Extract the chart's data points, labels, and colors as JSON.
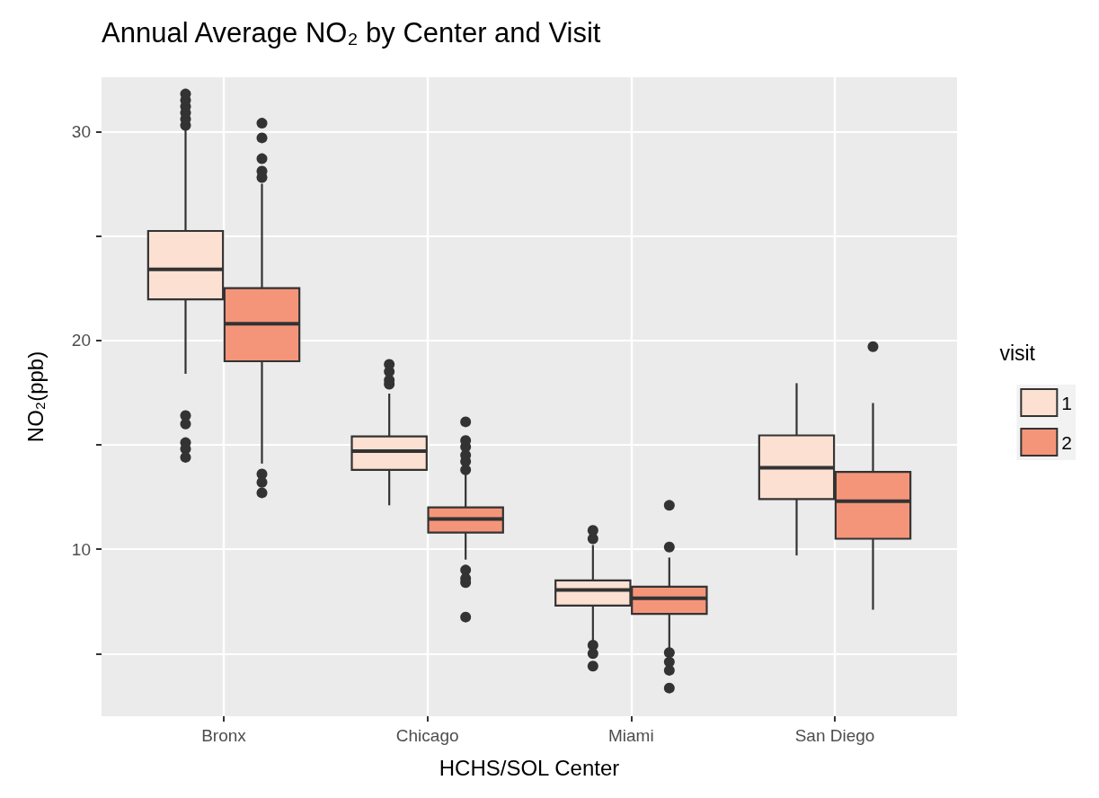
{
  "chart_data": {
    "type": "box",
    "title": "Annual Average NO₂ by Center and Visit",
    "xlabel": "HCHS/SOL Center",
    "ylabel": "NO₂(ppb)",
    "legend_title": "visit",
    "categories": [
      "Bronx",
      "Chicago",
      "Miami",
      "San Diego"
    ],
    "ylim": [
      2,
      32.6
    ],
    "yticks": [
      {
        "value": 5,
        "label": null
      },
      10,
      {
        "value": 15,
        "label": null
      },
      20,
      {
        "value": 25,
        "label": null
      },
      30
    ],
    "grid": true,
    "legend": "right",
    "series": [
      {
        "name": "1",
        "color": "#fce0d2",
        "boxes": [
          {
            "low": 18.4,
            "q1": 21.96,
            "median": 23.4,
            "q3": 25.24,
            "high": 30.1,
            "outliers": [
              30.3,
              30.6,
              30.9,
              31.2,
              31.5,
              31.8,
              16.4,
              16.0,
              15.1,
              14.8,
              14.4
            ]
          },
          {
            "low": 12.1,
            "q1": 13.8,
            "median": 14.7,
            "q3": 15.4,
            "high": 17.45,
            "outliers": [
              17.9,
              18.1,
              18.5,
              18.85
            ]
          },
          {
            "low": 5.6,
            "q1": 7.3,
            "median": 8.05,
            "q3": 8.5,
            "high": 10.2,
            "outliers": [
              10.5,
              10.9,
              5.4,
              5.0,
              4.4
            ]
          },
          {
            "low": 9.7,
            "q1": 12.4,
            "median": 13.9,
            "q3": 15.45,
            "high": 17.95
          }
        ]
      },
      {
        "name": "2",
        "color": "#f4957a",
        "boxes": [
          {
            "low": 14.1,
            "q1": 19.0,
            "median": 20.8,
            "q3": 22.5,
            "high": 27.5,
            "outliers": [
              27.8,
              28.1,
              28.7,
              29.7,
              30.4,
              13.6,
              13.2,
              12.7
            ]
          },
          {
            "low": 9.5,
            "q1": 10.8,
            "median": 11.45,
            "q3": 12.0,
            "high": 13.6,
            "outliers": [
              13.8,
              14.2,
              14.5,
              14.9,
              15.2,
              16.1,
              9.0,
              8.6,
              8.4,
              6.75
            ]
          },
          {
            "low": 5.2,
            "q1": 6.9,
            "median": 7.65,
            "q3": 8.2,
            "high": 9.6,
            "outliers": [
              10.1,
              12.1,
              5.05,
              4.6,
              4.2,
              3.35
            ]
          },
          {
            "low": 7.1,
            "q1": 10.5,
            "median": 12.3,
            "q3": 13.7,
            "high": 17.0,
            "outliers": [
              19.7
            ]
          }
        ]
      }
    ]
  }
}
